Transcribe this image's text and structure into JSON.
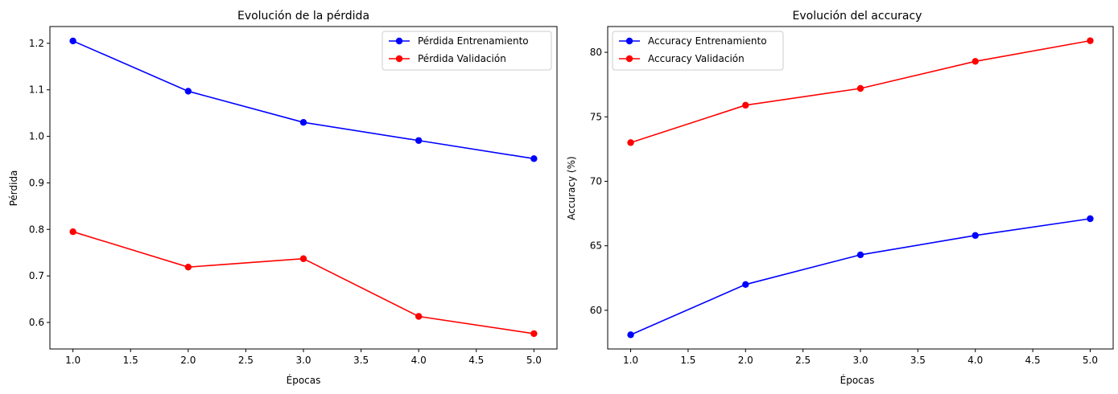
{
  "chart_data": [
    {
      "type": "line",
      "title": "Evolución de la pérdida",
      "xlabel": "Épocas",
      "ylabel": "Pérdida",
      "x": [
        1,
        2,
        3,
        4,
        5
      ],
      "xlim": [
        0.8,
        5.2
      ],
      "ylim": [
        0.543,
        1.236
      ],
      "xticks": [
        "1.0",
        "1.5",
        "2.0",
        "2.5",
        "3.0",
        "3.5",
        "4.0",
        "4.5",
        "5.0"
      ],
      "yticks": [
        "0.6",
        "0.7",
        "0.8",
        "0.9",
        "1.0",
        "1.1",
        "1.2"
      ],
      "grid": false,
      "legend_position": "upper right",
      "series": [
        {
          "name": "Pérdida Entrenamiento",
          "color": "#0000ff",
          "marker": "circle",
          "values": [
            1.205,
            1.097,
            1.03,
            0.991,
            0.952
          ]
        },
        {
          "name": "Pérdida Validación",
          "color": "#ff0000",
          "marker": "circle",
          "values": [
            0.795,
            0.719,
            0.737,
            0.613,
            0.576
          ]
        }
      ]
    },
    {
      "type": "line",
      "title": "Evolución del accuracy",
      "xlabel": "Épocas",
      "ylabel": "Accuracy (%)",
      "x": [
        1,
        2,
        3,
        4,
        5
      ],
      "xlim": [
        0.8,
        5.2
      ],
      "ylim": [
        57.0,
        82.0
      ],
      "xticks": [
        "1.0",
        "1.5",
        "2.0",
        "2.5",
        "3.0",
        "3.5",
        "4.0",
        "4.5",
        "5.0"
      ],
      "yticks": [
        "60",
        "65",
        "70",
        "75",
        "80"
      ],
      "grid": false,
      "legend_position": "upper left",
      "series": [
        {
          "name": "Accuracy Entrenamiento",
          "color": "#0000ff",
          "marker": "circle",
          "values": [
            58.1,
            62.0,
            64.3,
            65.8,
            67.1
          ]
        },
        {
          "name": "Accuracy Validación",
          "color": "#ff0000",
          "marker": "circle",
          "values": [
            73.0,
            75.9,
            77.2,
            79.3,
            80.9
          ]
        }
      ]
    }
  ]
}
